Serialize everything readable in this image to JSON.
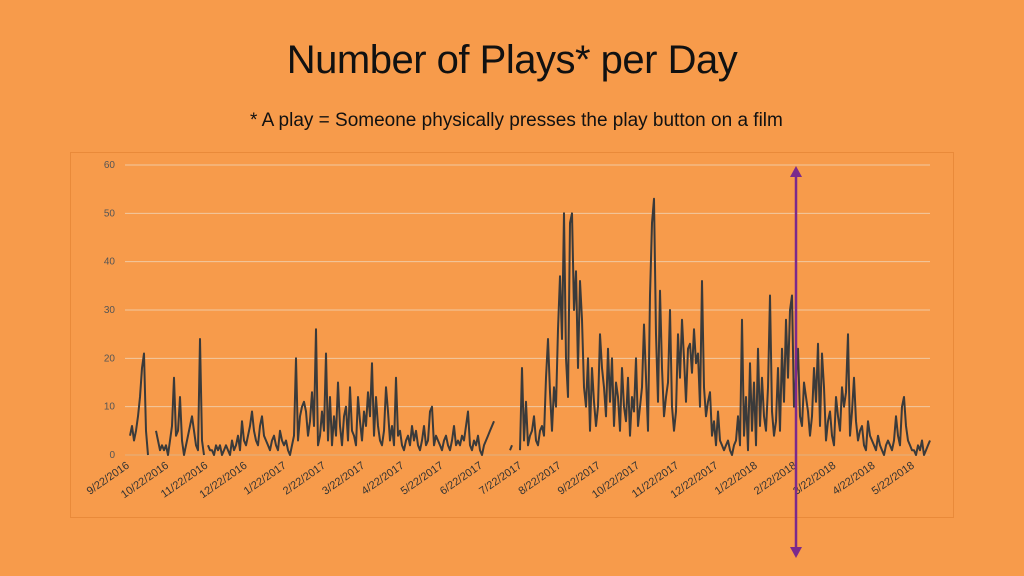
{
  "slide": {
    "title": "Number of Plays* per Day",
    "subtitle": "* A play = Someone physically presses the play button on a film"
  },
  "colors": {
    "background": "#F79B4B",
    "line": "#3A3A3A",
    "marker": "#7B2A8C",
    "grid": "#F2C9A0"
  },
  "chart_data": {
    "type": "line",
    "title": "Number of Plays* per Day",
    "xlabel": "",
    "ylabel": "",
    "ylim": [
      0,
      60
    ],
    "yticks": [
      0,
      10,
      20,
      30,
      40,
      50,
      60
    ],
    "grid": true,
    "x_tick_labels": [
      "9/22/2016",
      "10/22/2016",
      "11/22/2016",
      "12/22/2016",
      "1/22/2017",
      "2/22/2017",
      "3/22/2017",
      "4/22/2017",
      "5/22/2017",
      "6/22/2017",
      "7/22/2017",
      "8/22/2017",
      "9/22/2017",
      "10/22/2017",
      "11/22/2017",
      "12/22/2017",
      "1/22/2018",
      "2/22/2018",
      "3/22/2018",
      "4/22/2018",
      "5/22/2018"
    ],
    "series": [
      {
        "values": [
          4,
          6,
          3,
          5,
          8,
          12,
          18,
          21,
          5,
          0,
          null,
          null,
          null,
          5,
          3,
          1,
          2,
          1,
          2,
          0,
          3,
          6,
          16,
          4,
          5,
          12,
          3,
          0,
          2,
          4,
          6,
          8,
          5,
          2,
          1,
          24,
          3,
          0,
          null,
          2,
          1,
          1,
          0,
          2,
          1,
          2,
          0,
          1,
          2,
          1,
          0,
          3,
          1,
          2,
          4,
          1,
          7,
          3,
          2,
          4,
          6,
          9,
          5,
          3,
          2,
          6,
          8,
          4,
          3,
          2,
          1,
          3,
          4,
          2,
          1,
          5,
          3,
          2,
          3,
          1,
          0,
          2,
          4,
          20,
          3,
          8,
          10,
          11,
          9,
          4,
          7,
          13,
          6,
          26,
          2,
          4,
          9,
          5,
          21,
          3,
          12,
          2,
          8,
          4,
          15,
          6,
          2,
          8,
          10,
          3,
          14,
          5,
          4,
          2,
          12,
          7,
          3,
          9,
          6,
          13,
          8,
          19,
          4,
          12,
          6,
          3,
          2,
          5,
          14,
          9,
          3,
          6,
          2,
          16,
          4,
          5,
          2,
          1,
          3,
          4,
          2,
          6,
          3,
          5,
          2,
          1,
          3,
          6,
          2,
          3,
          9,
          10,
          2,
          4,
          3,
          2,
          1,
          3,
          4,
          2,
          1,
          3,
          6,
          2,
          3,
          2,
          4,
          3,
          6,
          9,
          2,
          1,
          3,
          2,
          4,
          1,
          0,
          2,
          3,
          4,
          5,
          6,
          7,
          null,
          null,
          null,
          null,
          null,
          null,
          null,
          1,
          2,
          null,
          null,
          null,
          1,
          18,
          3,
          11,
          2,
          4,
          5,
          8,
          3,
          2,
          5,
          6,
          4,
          16,
          24,
          13,
          5,
          14,
          10,
          26,
          37,
          24,
          50,
          20,
          12,
          48,
          50,
          30,
          38,
          18,
          36,
          28,
          14,
          10,
          20,
          5,
          18,
          11,
          6,
          10,
          25,
          18,
          14,
          8,
          22,
          11,
          20,
          6,
          15,
          12,
          5,
          18,
          10,
          7,
          16,
          4,
          12,
          9,
          20,
          6,
          10,
          14,
          27,
          16,
          5,
          33,
          48,
          53,
          25,
          11,
          34,
          18,
          8,
          12,
          15,
          30,
          10,
          5,
          9,
          25,
          16,
          28,
          20,
          11,
          22,
          23,
          17,
          26,
          19,
          21,
          10,
          36,
          14,
          8,
          11,
          13,
          4,
          7,
          2,
          9,
          3,
          2,
          1,
          2,
          3,
          1,
          0,
          2,
          3,
          8,
          2,
          28,
          4,
          12,
          1,
          19,
          5,
          15,
          2,
          22,
          6,
          16,
          8,
          5,
          14,
          33,
          9,
          4,
          7,
          18,
          5,
          22,
          11,
          28,
          16,
          30,
          33,
          10,
          16,
          22,
          8,
          6,
          15,
          12,
          9,
          4,
          8,
          18,
          11,
          23,
          6,
          21,
          14,
          3,
          7,
          9,
          4,
          2,
          12,
          8,
          5,
          14,
          10,
          13,
          25,
          4,
          9,
          16,
          7,
          3,
          5,
          6,
          2,
          1,
          7,
          4,
          3,
          2,
          1,
          4,
          2,
          1,
          0,
          2,
          3,
          2,
          1,
          3,
          8,
          4,
          2,
          10,
          12,
          6,
          3,
          2,
          1,
          1,
          0,
          2,
          1,
          3,
          0,
          1,
          2,
          3
        ]
      }
    ],
    "annotations": [
      {
        "type": "vertical-double-arrow",
        "x_value": "3/1/2018"
      }
    ]
  }
}
